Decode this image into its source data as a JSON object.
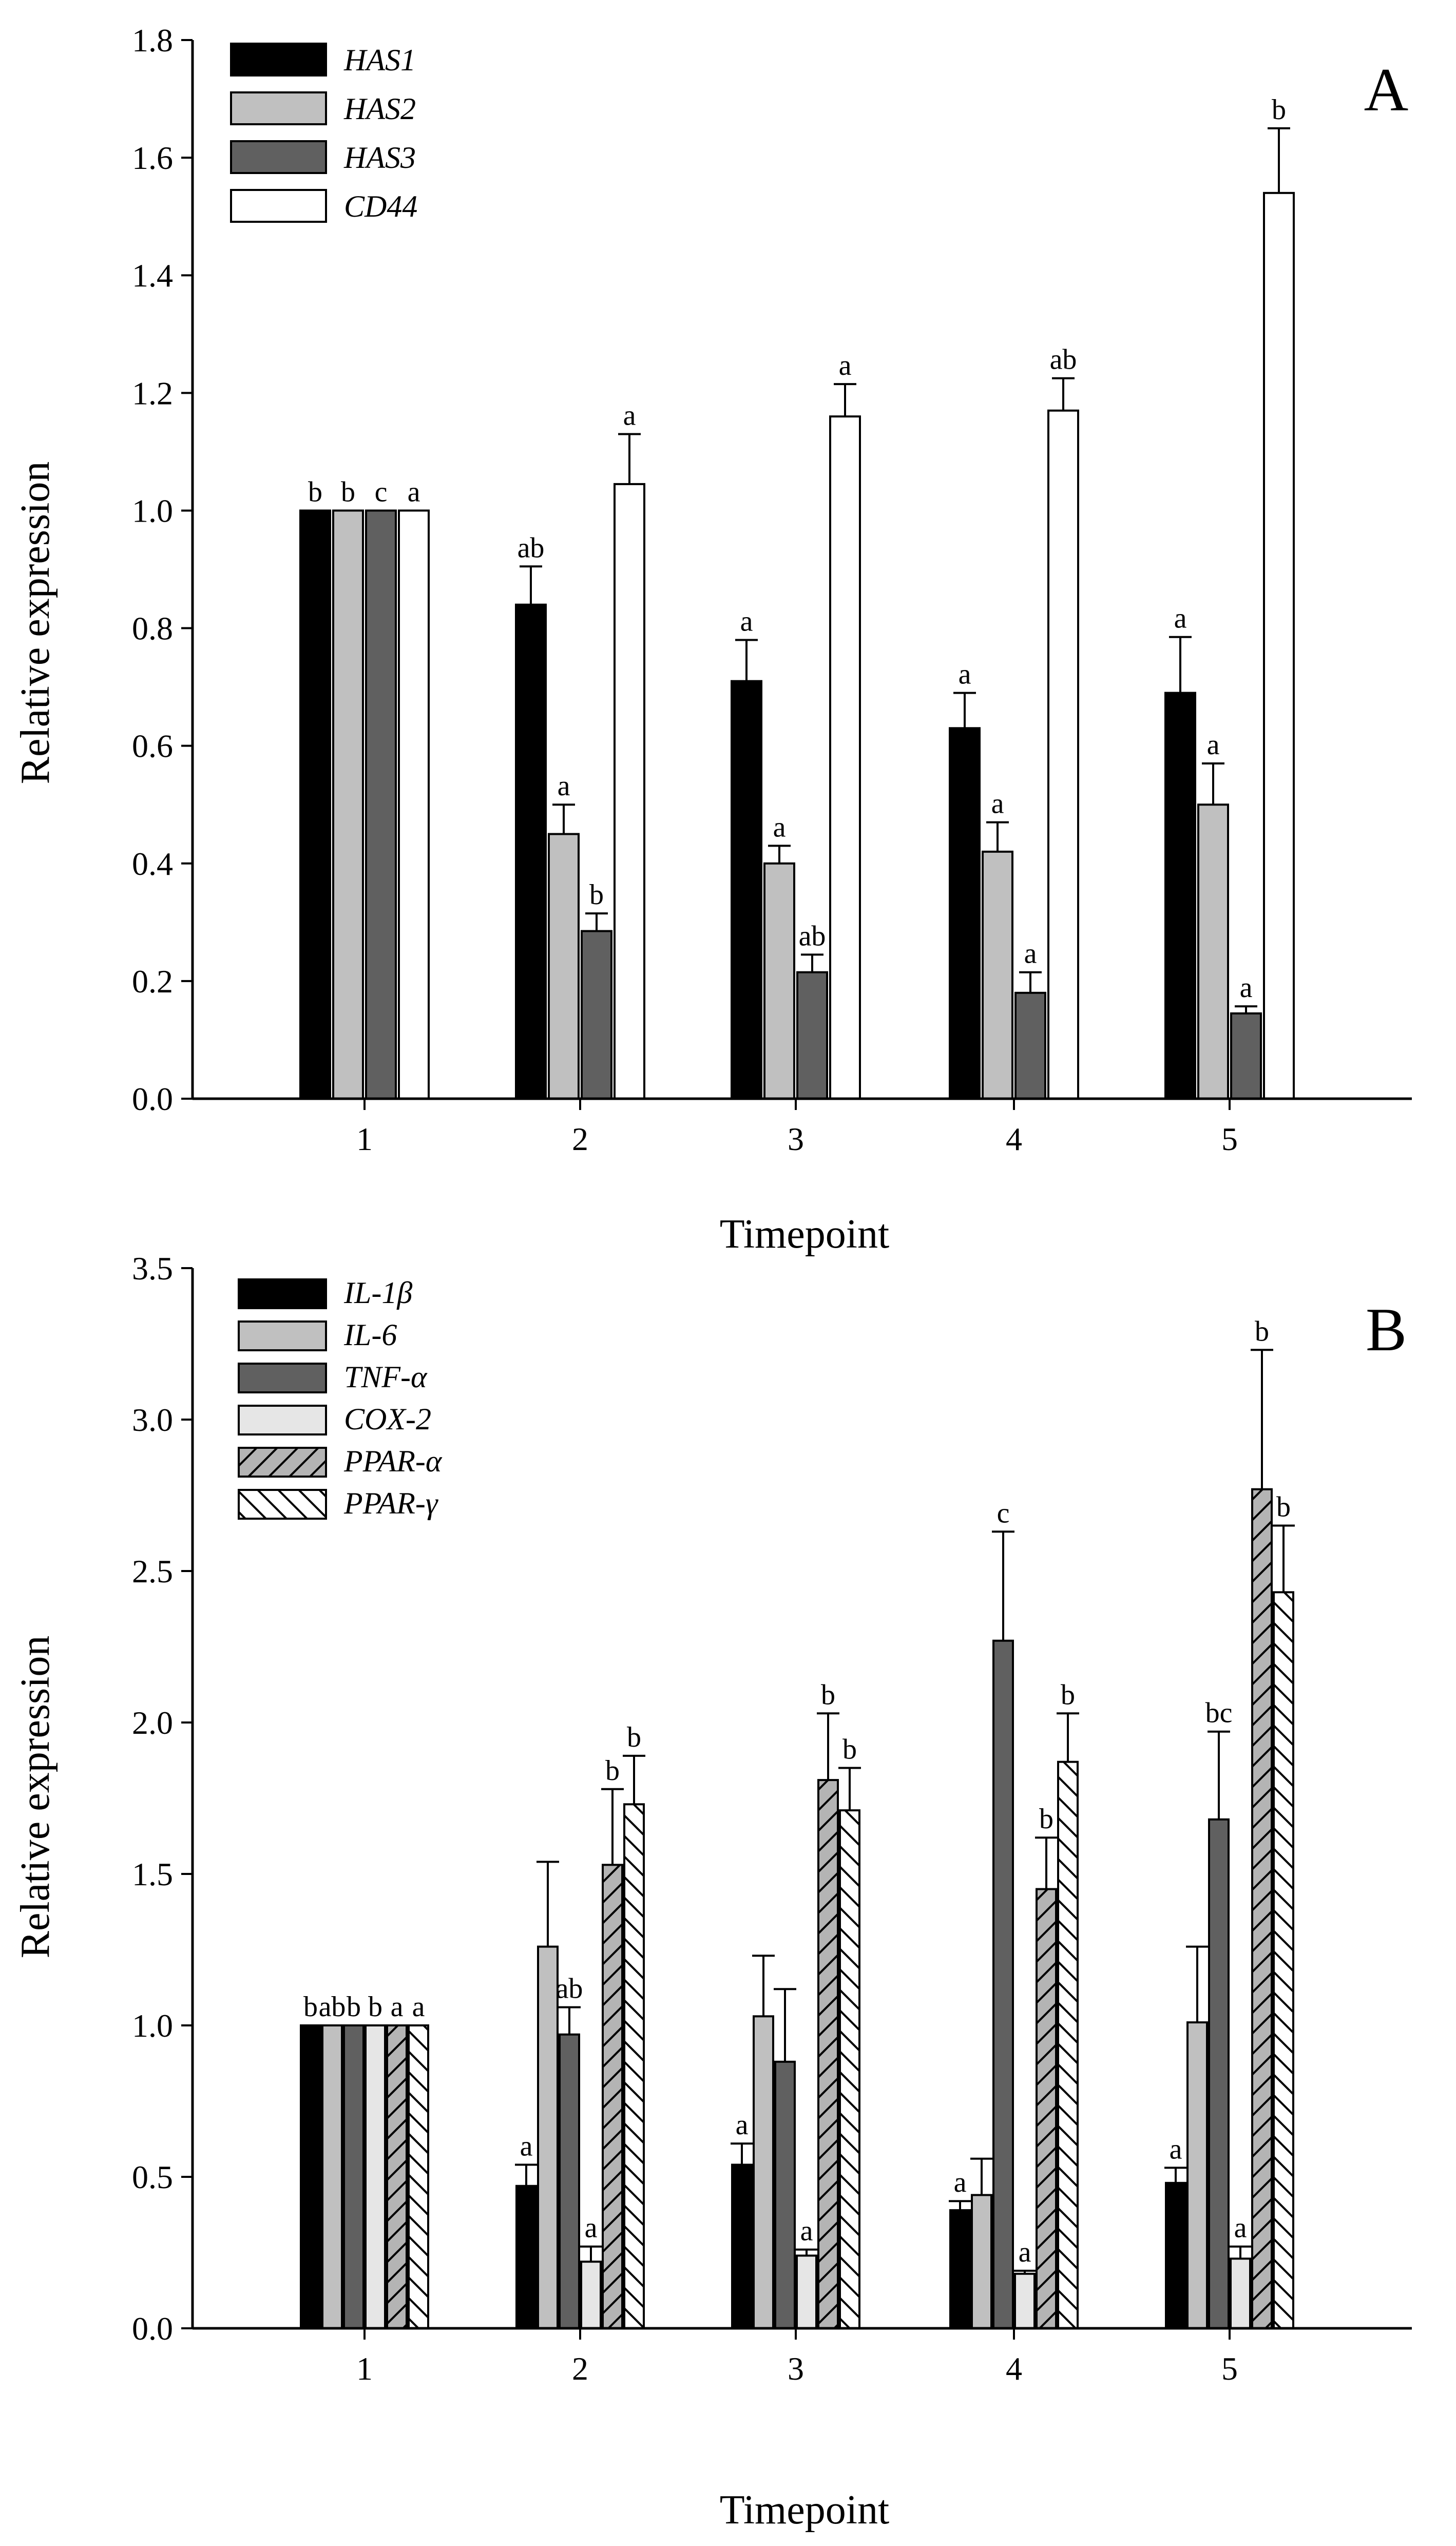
{
  "chart_data": [
    {
      "type": "bar",
      "panel_label": "A",
      "xlabel": "Timepoint",
      "ylabel": "Relative expression",
      "categories": [
        "1",
        "2",
        "3",
        "4",
        "5"
      ],
      "ylim": [
        0,
        1.8
      ],
      "yticks": [
        "0.0",
        "0.2",
        "0.4",
        "0.6",
        "0.8",
        "1.0",
        "1.2",
        "1.4",
        "1.6",
        "1.8"
      ],
      "grid": false,
      "legend_position": "top-left",
      "series": [
        {
          "name": "HAS1",
          "fill": "#000000",
          "pattern": "solid",
          "values": [
            1.0,
            0.84,
            0.71,
            0.63,
            0.69
          ],
          "errors": [
            0.0,
            0.065,
            0.07,
            0.06,
            0.095
          ],
          "letters": [
            "b",
            "ab",
            "a",
            "a",
            "a"
          ]
        },
        {
          "name": "HAS2",
          "fill": "#c0c0c0",
          "pattern": "solid",
          "values": [
            1.0,
            0.45,
            0.4,
            0.42,
            0.5
          ],
          "errors": [
            0.0,
            0.05,
            0.03,
            0.05,
            0.07
          ],
          "letters": [
            "b",
            "a",
            "a",
            "a",
            "a"
          ]
        },
        {
          "name": "HAS3",
          "fill": "#606060",
          "pattern": "solid",
          "values": [
            1.0,
            0.285,
            0.215,
            0.18,
            0.145
          ],
          "errors": [
            0.0,
            0.03,
            0.03,
            0.035,
            0.012
          ],
          "letters": [
            "c",
            "b",
            "ab",
            "a",
            "a"
          ]
        },
        {
          "name": "CD44",
          "fill": "#ffffff",
          "pattern": "solid",
          "values": [
            1.0,
            1.045,
            1.16,
            1.17,
            1.54
          ],
          "errors": [
            0.0,
            0.085,
            0.055,
            0.055,
            0.11
          ],
          "letters": [
            "a",
            "a",
            "a",
            "ab",
            "b"
          ]
        }
      ]
    },
    {
      "type": "bar",
      "panel_label": "B",
      "xlabel": "Timepoint",
      "ylabel": "Relative expression",
      "categories": [
        "1",
        "2",
        "3",
        "4",
        "5"
      ],
      "ylim": [
        0,
        3.5
      ],
      "yticks": [
        "0.0",
        "0.5",
        "1.0",
        "1.5",
        "2.0",
        "2.5",
        "3.0",
        "3.5"
      ],
      "grid": false,
      "legend_position": "top-left",
      "series": [
        {
          "name": "IL-1β",
          "fill": "#000000",
          "pattern": "solid",
          "values": [
            1.0,
            0.47,
            0.54,
            0.39,
            0.48
          ],
          "errors": [
            0.0,
            0.07,
            0.07,
            0.03,
            0.05
          ],
          "letters": [
            "b",
            "a",
            "a",
            "a",
            "a"
          ]
        },
        {
          "name": "IL-6",
          "fill": "#c0c0c0",
          "pattern": "solid",
          "values": [
            1.0,
            1.26,
            1.03,
            0.44,
            1.01
          ],
          "errors": [
            0.0,
            0.28,
            0.2,
            0.12,
            0.25
          ],
          "letters": [
            "ab",
            "",
            "",
            "",
            ""
          ]
        },
        {
          "name": "TNF-α",
          "fill": "#606060",
          "pattern": "solid",
          "values": [
            1.0,
            0.97,
            0.88,
            2.27,
            1.68
          ],
          "errors": [
            0.0,
            0.09,
            0.24,
            0.36,
            0.29
          ],
          "letters": [
            "b",
            "ab",
            "",
            "c",
            "bc"
          ]
        },
        {
          "name": "COX-2",
          "fill": "#e6e6e6",
          "pattern": "solid",
          "values": [
            1.0,
            0.22,
            0.24,
            0.18,
            0.23
          ],
          "errors": [
            0.0,
            0.05,
            0.02,
            0.01,
            0.04
          ],
          "letters": [
            "b",
            "a",
            "a",
            "a",
            "a"
          ]
        },
        {
          "name": "PPAR-α",
          "fill": "#b4b4b4",
          "pattern": "forward-hatch",
          "values": [
            1.0,
            1.53,
            1.81,
            1.45,
            2.77
          ],
          "errors": [
            0.0,
            0.25,
            0.22,
            0.17,
            0.46
          ],
          "letters": [
            "a",
            "b",
            "b",
            "b",
            "b"
          ]
        },
        {
          "name": "PPAR-γ",
          "fill": "#ffffff",
          "pattern": "back-hatch",
          "values": [
            1.0,
            1.73,
            1.71,
            1.87,
            2.43
          ],
          "errors": [
            0.0,
            0.16,
            0.14,
            0.16,
            0.22
          ],
          "letters": [
            "a",
            "b",
            "b",
            "b",
            "b"
          ]
        }
      ]
    }
  ]
}
